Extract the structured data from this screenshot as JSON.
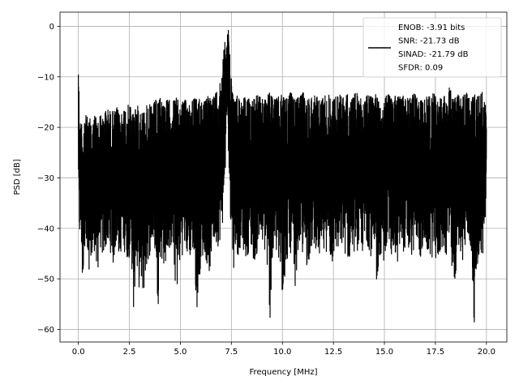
{
  "chart_data": {
    "type": "line",
    "title": "",
    "xlabel": "Frequency [MHz]",
    "ylabel": "PSD [dB]",
    "xlim": [
      -0.9,
      21.0
    ],
    "ylim": [
      -62.5,
      2.8
    ],
    "xticks": [
      0.0,
      2.5,
      5.0,
      7.5,
      10.0,
      12.5,
      15.0,
      17.5,
      20.0
    ],
    "xtick_labels": [
      "0.0",
      "2.5",
      "5.0",
      "7.5",
      "10.0",
      "12.5",
      "15.0",
      "17.5",
      "20.0"
    ],
    "yticks": [
      0,
      -10,
      -20,
      -30,
      -40,
      -50,
      -60
    ],
    "ytick_labels": [
      "0",
      "−10",
      "−20",
      "−30",
      "−40",
      "−50",
      "−60"
    ],
    "grid": true,
    "legend_position": "top-right",
    "line_color": "#000000",
    "series": [
      {
        "legend_lines": [
          "ENOB: -3.91 bits",
          "SNR: -21.73 dB",
          "SINAD: -21.79 dB",
          "SFDR: 0.09"
        ],
        "x": [
          0.0,
          0.02,
          0.05,
          0.1,
          0.15,
          0.2,
          0.3,
          0.4,
          0.5,
          0.6,
          0.7,
          0.8,
          0.9,
          1.0,
          1.1,
          1.2,
          1.3,
          1.4,
          1.5,
          1.6,
          1.7,
          1.8,
          1.9,
          2.0,
          2.2,
          2.4,
          2.6,
          2.7,
          2.8,
          3.0,
          3.2,
          3.4,
          3.6,
          3.8,
          3.9,
          4.0,
          4.2,
          4.4,
          4.6,
          4.8,
          5.0,
          5.2,
          5.4,
          5.6,
          5.8,
          6.0,
          6.2,
          6.4,
          6.6,
          6.8,
          7.0,
          7.1,
          7.2,
          7.25,
          7.3,
          7.35,
          7.4,
          7.5,
          7.6,
          7.7,
          7.8,
          8.0,
          8.2,
          8.4,
          8.6,
          8.8,
          9.0,
          9.2,
          9.4,
          9.6,
          9.8,
          10.0,
          10.2,
          10.4,
          10.6,
          10.8,
          11.0,
          11.2,
          11.4,
          11.6,
          11.8,
          12.0,
          12.2,
          12.4,
          12.6,
          12.8,
          13.0,
          13.2,
          13.4,
          13.6,
          13.8,
          14.0,
          14.2,
          14.4,
          14.6,
          14.8,
          15.0,
          15.2,
          15.4,
          15.6,
          15.8,
          16.0,
          16.2,
          16.4,
          16.6,
          16.8,
          17.0,
          17.2,
          17.4,
          17.6,
          17.8,
          18.0,
          18.2,
          18.4,
          18.6,
          18.8,
          19.0,
          19.2,
          19.4,
          19.6,
          19.8,
          20.0
        ],
        "upper": [
          -3.2,
          -8.0,
          -20.5,
          -19.0,
          -18.5,
          -20.0,
          -18.0,
          -17.5,
          -19.0,
          -18.0,
          -19.5,
          -17.5,
          -18.0,
          -19.0,
          -17.0,
          -18.5,
          -16.5,
          -17.0,
          -16.0,
          -17.5,
          -16.5,
          -17.0,
          -16.0,
          -17.5,
          -16.5,
          -15.5,
          -16.0,
          -17.0,
          -15.5,
          -16.0,
          -17.0,
          -15.0,
          -16.0,
          -14.5,
          -15.5,
          -14.0,
          -15.0,
          -14.5,
          -15.0,
          -14.0,
          -15.5,
          -14.5,
          -15.0,
          -14.0,
          -14.5,
          -14.0,
          -15.0,
          -13.5,
          -14.0,
          -12.5,
          -10.0,
          -6.0,
          -2.0,
          -1.0,
          -0.3,
          -0.8,
          -2.5,
          -9.5,
          -14.0,
          -14.5,
          -13.5,
          -14.5,
          -13.8,
          -14.5,
          -14.0,
          -13.5,
          -14.5,
          -14.0,
          -13.0,
          -14.5,
          -14.0,
          -13.5,
          -14.0,
          -13.0,
          -14.5,
          -14.0,
          -13.0,
          -14.5,
          -14.0,
          -13.5,
          -14.5,
          -14.0,
          -13.0,
          -14.5,
          -14.0,
          -13.5,
          -14.0,
          -13.5,
          -14.5,
          -13.0,
          -14.0,
          -14.5,
          -13.5,
          -14.0,
          -13.0,
          -14.5,
          -14.0,
          -13.5,
          -14.5,
          -13.0,
          -14.0,
          -13.5,
          -14.5,
          -13.0,
          -14.0,
          -14.5,
          -13.5,
          -14.0,
          -13.0,
          -14.5,
          -14.0,
          -13.5,
          -12.0,
          -14.5,
          -13.5,
          -14.0,
          -13.0,
          -14.5,
          -13.5,
          -14.0,
          -13.0,
          -16.5
        ],
        "lower": [
          -31.0,
          -40.0,
          -43.0,
          -42.0,
          -44.5,
          -54.0,
          -43.0,
          -47.0,
          -55.5,
          -45.0,
          -48.0,
          -44.0,
          -52.5,
          -46.0,
          -44.0,
          -47.0,
          -45.5,
          -43.0,
          -46.0,
          -44.5,
          -48.0,
          -45.0,
          -43.5,
          -46.0,
          -44.0,
          -46.5,
          -45.0,
          -59.5,
          -48.0,
          -52.5,
          -53.5,
          -47.0,
          -44.0,
          -45.5,
          -56.5,
          -46.0,
          -48.0,
          -45.0,
          -44.0,
          -54.0,
          -46.5,
          -44.0,
          -47.0,
          -45.0,
          -56.5,
          -47.0,
          -45.0,
          -50.0,
          -43.5,
          -44.0,
          -42.0,
          -38.0,
          -30.0,
          -22.0,
          -20.0,
          -24.0,
          -33.0,
          -42.0,
          -48.5,
          -44.0,
          -46.0,
          -43.0,
          -46.5,
          -44.0,
          -47.0,
          -45.0,
          -43.5,
          -46.0,
          -58.5,
          -44.0,
          -48.0,
          -55.0,
          -47.0,
          -45.0,
          -52.5,
          -44.0,
          -46.0,
          -48.0,
          -45.0,
          -43.5,
          -46.5,
          -47.0,
          -44.0,
          -48.5,
          -45.0,
          -46.0,
          -44.0,
          -47.5,
          -45.5,
          -44.0,
          -46.0,
          -45.0,
          -43.5,
          -46.5,
          -52.5,
          -45.0,
          -47.0,
          -44.0,
          -46.0,
          -48.0,
          -45.0,
          -44.5,
          -46.5,
          -45.5,
          -43.0,
          -47.0,
          -44.0,
          -46.5,
          -45.5,
          -48.0,
          -44.0,
          -46.0,
          -45.0,
          -55.5,
          -43.5,
          -46.5,
          -45.0,
          -44.0,
          -59.0,
          -45.5,
          -48.0,
          -35.0
        ]
      }
    ]
  }
}
